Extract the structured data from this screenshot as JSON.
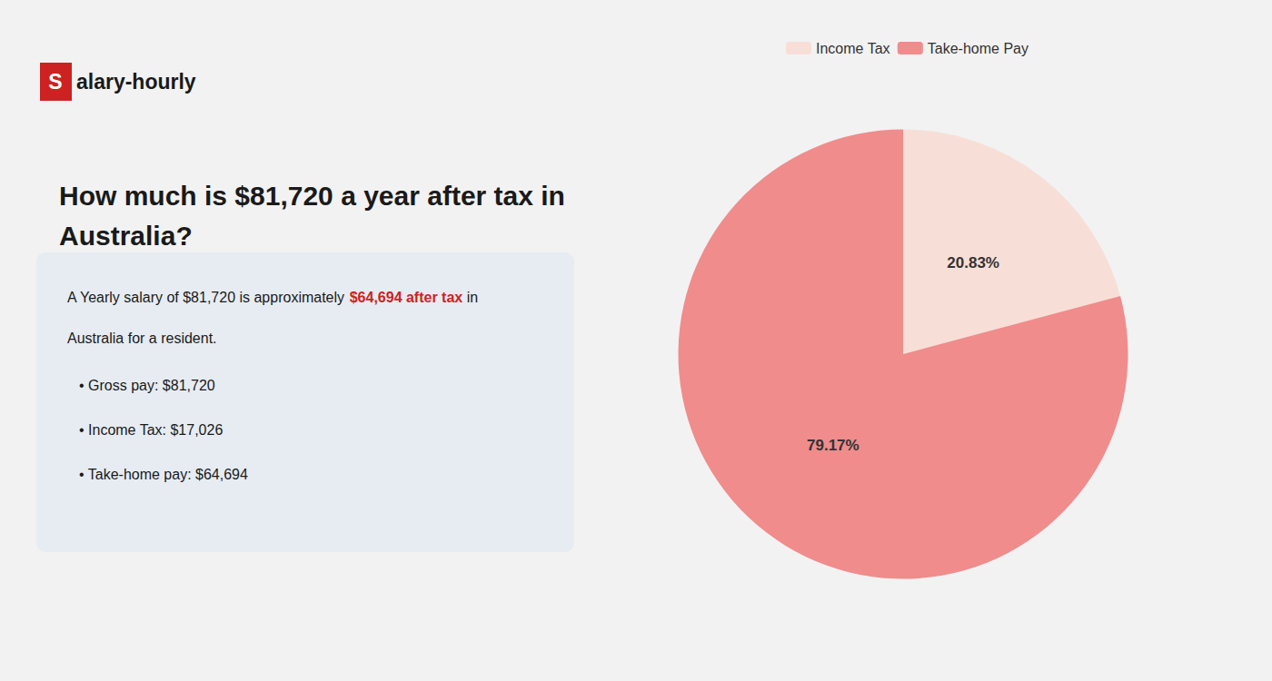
{
  "chart_data": {
    "type": "pie",
    "title": "How much is $81,720 a year after tax in\nAustralia?",
    "categories": [
      "Income Tax",
      "Take-home Pay"
    ],
    "values": [
      20.83,
      79.17
    ],
    "value_labels": [
      "20.83%",
      "79.17%"
    ],
    "colors": [
      "#f7dfd8",
      "#f08c8c"
    ],
    "data_labels": true,
    "legend": "top",
    "annotations": [
      "S",
      "alary-hourly",
      "A Yearly salary of $81,720 is approximately ",
      "$64,694 after tax",
      " in",
      "Australia for a resident.",
      "• Gross pay: $81,720",
      "• Income Tax: $17,026",
      "• Take-home pay: $64,694"
    ]
  }
}
